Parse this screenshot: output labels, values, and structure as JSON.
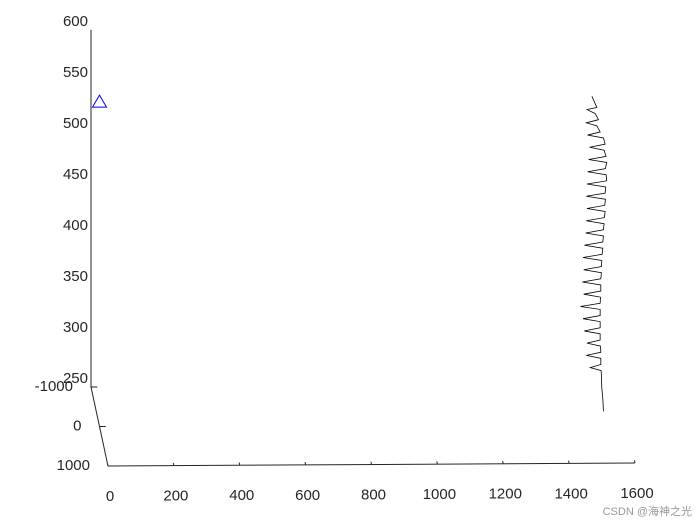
{
  "chart_data": {
    "type": "line3d",
    "xlim": [
      0,
      1600
    ],
    "xticks": [
      0,
      200,
      400,
      600,
      800,
      1000,
      1200,
      1400,
      1600
    ],
    "ylim": [
      -1000,
      1000
    ],
    "yticks": [
      -1000,
      0,
      1000
    ],
    "zlim": [
      250,
      600
    ],
    "zticks": [
      250,
      300,
      350,
      400,
      450,
      500,
      550,
      600
    ],
    "series": [
      {
        "color": "#000000",
        "marker": "none",
        "x": [
          1495,
          1510,
          1480,
          1505,
          1515,
          1478,
          1510,
          1520,
          1482,
          1530,
          1535,
          1488,
          1532,
          1538,
          1485,
          1540,
          1536,
          1482,
          1538,
          1540,
          1480,
          1537,
          1535,
          1478,
          1536,
          1534,
          1480,
          1535,
          1533,
          1478,
          1532,
          1530,
          1476,
          1530,
          1528,
          1472,
          1528,
          1526,
          1468,
          1525,
          1524,
          1470,
          1524,
          1522,
          1466,
          1522,
          1522,
          1470,
          1521,
          1520,
          1460,
          1520,
          1520,
          1468,
          1520,
          1520,
          1472,
          1520,
          1520,
          1480,
          1521,
          1522,
          1478,
          1522,
          1522,
          1490,
          1523,
          1524,
          1525,
          1528,
          1530
        ],
        "y": [
          0,
          0,
          0,
          0,
          0,
          0,
          0,
          0,
          0,
          0,
          0,
          0,
          0,
          0,
          0,
          0,
          0,
          0,
          0,
          0,
          0,
          0,
          0,
          0,
          0,
          0,
          0,
          0,
          0,
          0,
          0,
          0,
          0,
          0,
          0,
          0,
          0,
          0,
          0,
          0,
          0,
          0,
          0,
          0,
          0,
          0,
          0,
          0,
          0,
          0,
          0,
          0,
          0,
          0,
          0,
          0,
          0,
          0,
          0,
          0,
          0,
          0,
          0,
          0,
          0,
          0,
          0,
          0,
          0,
          0,
          0
        ],
        "z": [
          571,
          560,
          558,
          554,
          548,
          545,
          542,
          536,
          533,
          530,
          524,
          521,
          518,
          512,
          509,
          506,
          500,
          497,
          494,
          488,
          485,
          482,
          476,
          473,
          470,
          464,
          461,
          458,
          452,
          449,
          446,
          440,
          437,
          434,
          428,
          425,
          422,
          416,
          413,
          410,
          404,
          401,
          398,
          392,
          389,
          386,
          380,
          377,
          374,
          368,
          365,
          362,
          356,
          353,
          350,
          344,
          341,
          338,
          332,
          329,
          326,
          320,
          317,
          314,
          308,
          305,
          302,
          296,
          285,
          275,
          262
        ]
      },
      {
        "color": "#0000ff",
        "marker": "triangle",
        "x": [
          0
        ],
        "y": [
          0
        ],
        "z": [
          568
        ]
      }
    ],
    "watermark": "CSDN @海神之光"
  }
}
